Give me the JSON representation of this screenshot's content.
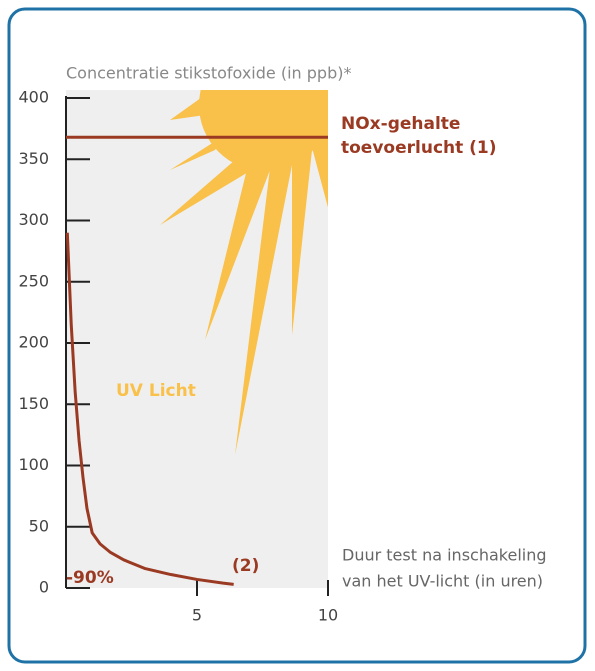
{
  "chart_data": {
    "type": "line",
    "title": "Concentratie stikstofoxide (in ppb)*",
    "xlabel": [
      "Duur test na inschakeling",
      "van het UV-licht (in uren)"
    ],
    "xlim": [
      0,
      10
    ],
    "xticks": [
      5,
      10
    ],
    "ylim": [
      0,
      400
    ],
    "yticks": [
      0,
      50,
      100,
      150,
      200,
      250,
      300,
      350,
      400
    ],
    "reference_line": {
      "value": 368,
      "label": [
        "NOx-gehalte",
        "toevoerlucht (1)"
      ],
      "color": "#9b3a22"
    },
    "series": [
      {
        "color": "#9b3a22",
        "x": [
          0.05,
          0.2,
          0.35,
          0.5,
          0.65,
          0.8,
          1.0,
          1.3,
          1.7,
          2.2,
          3.0,
          4.0,
          5.0,
          6.0,
          6.4
        ],
        "values": [
          290,
          215,
          160,
          120,
          90,
          65,
          45,
          36,
          29,
          23,
          16,
          11,
          7,
          4,
          3
        ]
      }
    ],
    "annotations": {
      "uv": "UV Licht",
      "reduction": "-90%",
      "note": "(2)"
    }
  }
}
